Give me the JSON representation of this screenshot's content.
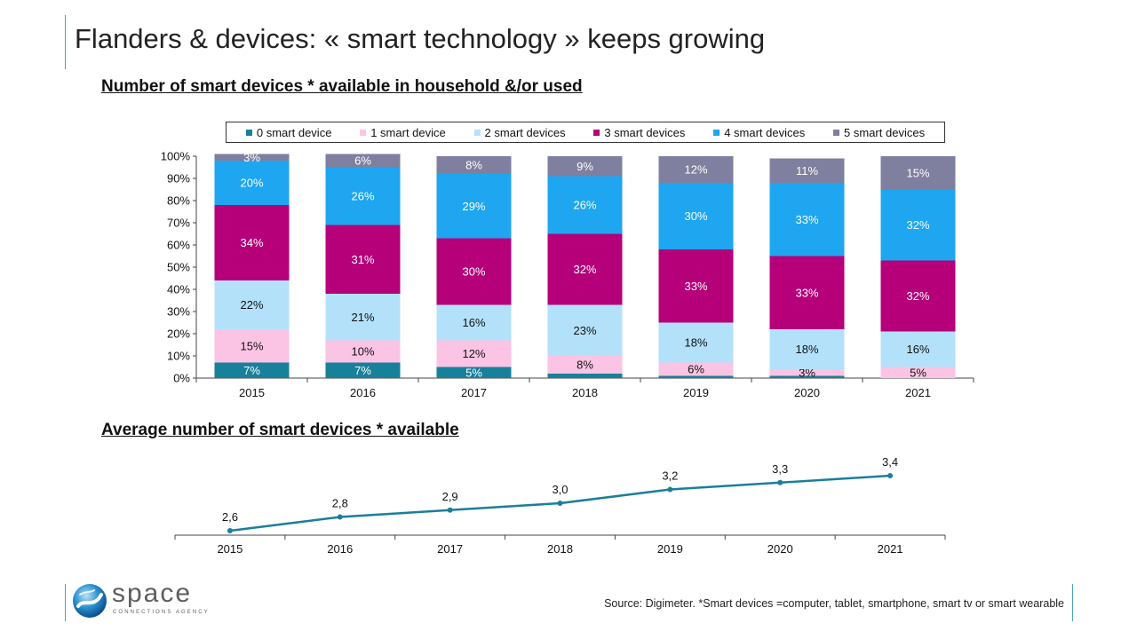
{
  "page": {
    "title": "Flanders & devices: « smart technology » keeps growing",
    "source": "Source: Digimeter.  *Smart devices =computer, tablet, smartphone, smart tv or smart wearable",
    "logo": {
      "word": "space",
      "tagline": "CONNECTIONS AGENCY"
    },
    "accent_color": "#4aa3b5"
  },
  "chart_data": [
    {
      "type": "bar",
      "stacked": true,
      "title": "Number of smart devices * available in household &/or used",
      "categories": [
        "2015",
        "2016",
        "2017",
        "2018",
        "2019",
        "2020",
        "2021"
      ],
      "ylim": [
        0,
        100
      ],
      "yticks": [
        "0%",
        "10%",
        "20%",
        "30%",
        "40%",
        "50%",
        "60%",
        "70%",
        "80%",
        "90%",
        "100%"
      ],
      "legend_position": "top",
      "grid": false,
      "series": [
        {
          "name": "0 smart device",
          "color": "#17809b",
          "label_color": "#ffffff",
          "values": [
            7,
            7,
            5,
            2,
            1,
            1,
            0
          ],
          "labels": [
            "7%",
            "7%",
            "5%",
            "",
            "",
            "",
            ""
          ]
        },
        {
          "name": "1 smart device",
          "color": "#fbc4e4",
          "label_color": "#111111",
          "values": [
            15,
            10,
            12,
            8,
            6,
            3,
            5
          ],
          "labels": [
            "15%",
            "10%",
            "12%",
            "8%",
            "6%",
            "3%",
            "5%"
          ]
        },
        {
          "name": "2 smart devices",
          "color": "#b3e1fa",
          "label_color": "#111111",
          "values": [
            22,
            21,
            16,
            23,
            18,
            18,
            16
          ],
          "labels": [
            "22%",
            "21%",
            "16%",
            "23%",
            "18%",
            "18%",
            "16%"
          ]
        },
        {
          "name": "3 smart devices",
          "color": "#b5007a",
          "label_color": "#ffffff",
          "values": [
            34,
            31,
            30,
            32,
            33,
            33,
            32
          ],
          "labels": [
            "34%",
            "31%",
            "30%",
            "32%",
            "33%",
            "33%",
            "32%"
          ]
        },
        {
          "name": "4 smart devices",
          "color": "#1ea6f0",
          "label_color": "#ffffff",
          "values": [
            20,
            26,
            29,
            26,
            30,
            33,
            32
          ],
          "labels": [
            "20%",
            "26%",
            "29%",
            "26%",
            "30%",
            "33%",
            "32%"
          ]
        },
        {
          "name": "5 smart devices",
          "color": "#7f7f9f",
          "label_color": "#ffffff",
          "values": [
            3,
            6,
            8,
            9,
            12,
            11,
            15
          ],
          "labels": [
            "3%",
            "6%",
            "8%",
            "9%",
            "12%",
            "11%",
            "15%"
          ]
        }
      ]
    },
    {
      "type": "line",
      "title": "Average number of smart devices * available",
      "categories": [
        "2015",
        "2016",
        "2017",
        "2018",
        "2019",
        "2020",
        "2021"
      ],
      "values": [
        2.6,
        2.8,
        2.9,
        3.0,
        3.2,
        3.3,
        3.4
      ],
      "labels": [
        "2,6",
        "2,8",
        "2,9",
        "3,0",
        "3,2",
        "3,3",
        "3,4"
      ],
      "color": "#1a7f9a",
      "grid": false
    }
  ]
}
